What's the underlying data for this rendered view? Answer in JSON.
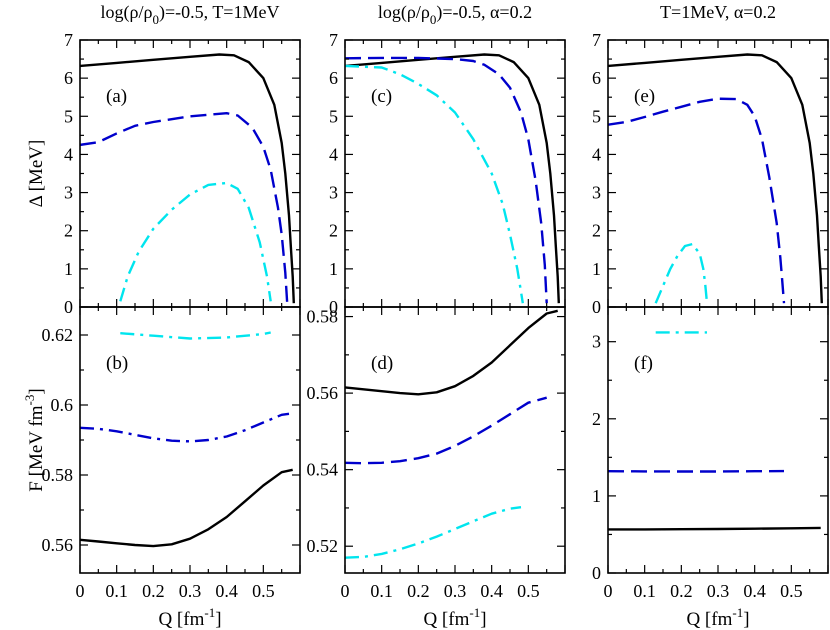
{
  "chart_data": [
    {
      "id": "a",
      "type": "line",
      "panel_label": "(a)",
      "title": "log(ρ/ρ0)=-0.5, T=1MeV",
      "xlabel": "",
      "ylabel": "Δ [MeV]",
      "xlim": [
        0,
        0.6
      ],
      "ylim": [
        0,
        7
      ],
      "xticks": [
        0,
        0.1,
        0.2,
        0.3,
        0.4,
        0.5
      ],
      "yticks": [
        0,
        1,
        2,
        3,
        4,
        5,
        6,
        7
      ],
      "series": [
        {
          "name": "black solid",
          "color": "#000000",
          "dash": "solid",
          "x": [
            0,
            0.1,
            0.2,
            0.3,
            0.38,
            0.42,
            0.46,
            0.5,
            0.53,
            0.55,
            0.56,
            0.57,
            0.575,
            0.58,
            0.583
          ],
          "y": [
            6.32,
            6.4,
            6.48,
            6.56,
            6.62,
            6.6,
            6.42,
            6.0,
            5.3,
            4.3,
            3.5,
            2.4,
            1.6,
            0.8,
            0.1
          ]
        },
        {
          "name": "blue dashed",
          "color": "#0000cc",
          "dash": "dashed",
          "x": [
            0,
            0.05,
            0.1,
            0.15,
            0.2,
            0.3,
            0.4,
            0.43,
            0.47,
            0.5,
            0.52,
            0.54,
            0.55,
            0.56,
            0.565
          ],
          "y": [
            4.25,
            4.32,
            4.55,
            4.75,
            4.85,
            5.0,
            5.08,
            5.02,
            4.7,
            4.2,
            3.6,
            2.6,
            1.9,
            0.9,
            0.1
          ]
        },
        {
          "name": "cyan dash-dot",
          "color": "#00e5ee",
          "dash": "dashdot",
          "x": [
            0.11,
            0.13,
            0.16,
            0.2,
            0.25,
            0.3,
            0.35,
            0.4,
            0.43,
            0.46,
            0.49,
            0.51,
            0.52
          ],
          "y": [
            0.15,
            0.8,
            1.45,
            2.05,
            2.55,
            2.95,
            3.2,
            3.25,
            3.1,
            2.6,
            1.7,
            0.8,
            0.15
          ]
        }
      ]
    },
    {
      "id": "b",
      "type": "line",
      "panel_label": "(b)",
      "title": "",
      "xlabel": "Q [fm⁻¹]",
      "ylabel": "F [MeV fm⁻³]",
      "xlim": [
        0,
        0.6
      ],
      "ylim": [
        0.552,
        0.628
      ],
      "xticks": [
        0,
        0.1,
        0.2,
        0.3,
        0.4,
        0.5
      ],
      "yticks": [
        0.56,
        0.58,
        0.6,
        0.62
      ],
      "series": [
        {
          "name": "black solid",
          "color": "#000000",
          "dash": "solid",
          "x": [
            0,
            0.05,
            0.1,
            0.15,
            0.2,
            0.25,
            0.3,
            0.35,
            0.4,
            0.45,
            0.5,
            0.55,
            0.58
          ],
          "y": [
            0.5615,
            0.561,
            0.5605,
            0.56,
            0.5597,
            0.5602,
            0.5618,
            0.5645,
            0.568,
            0.5725,
            0.577,
            0.5808,
            0.5815
          ]
        },
        {
          "name": "blue dash-dot",
          "color": "#0000cc",
          "dash": "dashdot",
          "x": [
            0,
            0.05,
            0.1,
            0.15,
            0.2,
            0.25,
            0.3,
            0.35,
            0.4,
            0.45,
            0.5,
            0.55,
            0.57
          ],
          "y": [
            0.5935,
            0.5932,
            0.5925,
            0.5915,
            0.5905,
            0.5898,
            0.5896,
            0.59,
            0.591,
            0.5928,
            0.595,
            0.5972,
            0.5975
          ]
        },
        {
          "name": "cyan dash-dot",
          "color": "#00e5ee",
          "dash": "dashdot",
          "x": [
            0.11,
            0.2,
            0.3,
            0.4,
            0.5,
            0.52
          ],
          "y": [
            0.6205,
            0.6198,
            0.619,
            0.6193,
            0.6203,
            0.6207
          ]
        }
      ]
    },
    {
      "id": "c",
      "type": "line",
      "panel_label": "(c)",
      "title": "log(ρ/ρ0)=-0.5, α=0.2",
      "xlabel": "",
      "ylabel": "",
      "xlim": [
        0,
        0.6
      ],
      "ylim": [
        0,
        7
      ],
      "xticks": [
        0,
        0.1,
        0.2,
        0.3,
        0.4,
        0.5
      ],
      "yticks": [
        0,
        1,
        2,
        3,
        4,
        5,
        6,
        7
      ],
      "series": [
        {
          "name": "black solid",
          "color": "#000000",
          "dash": "solid",
          "x": [
            0,
            0.1,
            0.2,
            0.3,
            0.38,
            0.42,
            0.46,
            0.5,
            0.53,
            0.55,
            0.56,
            0.57,
            0.575,
            0.58,
            0.583
          ],
          "y": [
            6.32,
            6.4,
            6.48,
            6.56,
            6.62,
            6.6,
            6.42,
            6.0,
            5.3,
            4.3,
            3.5,
            2.4,
            1.6,
            0.8,
            0.1
          ]
        },
        {
          "name": "blue dashed",
          "color": "#0000cc",
          "dash": "dashed",
          "x": [
            0,
            0.1,
            0.2,
            0.3,
            0.35,
            0.38,
            0.42,
            0.45,
            0.48,
            0.5,
            0.52,
            0.535,
            0.545,
            0.55
          ],
          "y": [
            6.52,
            6.53,
            6.53,
            6.5,
            6.45,
            6.35,
            6.1,
            5.75,
            5.1,
            4.4,
            3.3,
            2.2,
            1.1,
            0.1
          ]
        },
        {
          "name": "cyan dash-dot",
          "color": "#00e5ee",
          "dash": "dashdot",
          "x": [
            0,
            0.1,
            0.15,
            0.2,
            0.25,
            0.3,
            0.35,
            0.4,
            0.43,
            0.45,
            0.47,
            0.48,
            0.485
          ],
          "y": [
            6.32,
            6.28,
            6.1,
            5.85,
            5.55,
            5.1,
            4.4,
            3.5,
            2.7,
            1.9,
            1.0,
            0.4,
            0.1
          ]
        }
      ]
    },
    {
      "id": "d",
      "type": "line",
      "panel_label": "(d)",
      "title": "",
      "xlabel": "Q [fm⁻¹]",
      "ylabel": "",
      "xlim": [
        0,
        0.6
      ],
      "ylim": [
        0.513,
        0.5825
      ],
      "xticks": [
        0,
        0.1,
        0.2,
        0.3,
        0.4,
        0.5
      ],
      "yticks": [
        0.52,
        0.54,
        0.56,
        0.58
      ],
      "series": [
        {
          "name": "black solid",
          "color": "#000000",
          "dash": "solid",
          "x": [
            0,
            0.05,
            0.1,
            0.15,
            0.2,
            0.25,
            0.3,
            0.35,
            0.4,
            0.45,
            0.5,
            0.55,
            0.58
          ],
          "y": [
            0.5615,
            0.561,
            0.5605,
            0.56,
            0.5597,
            0.5602,
            0.5618,
            0.5645,
            0.568,
            0.5725,
            0.577,
            0.5808,
            0.5815
          ]
        },
        {
          "name": "blue dashed",
          "color": "#0000cc",
          "dash": "dashed",
          "x": [
            0,
            0.05,
            0.1,
            0.15,
            0.2,
            0.25,
            0.3,
            0.35,
            0.4,
            0.45,
            0.5,
            0.55
          ],
          "y": [
            0.5418,
            0.5417,
            0.5418,
            0.5422,
            0.543,
            0.5442,
            0.5462,
            0.5487,
            0.5515,
            0.5545,
            0.5575,
            0.5588
          ]
        },
        {
          "name": "cyan dash-dot",
          "color": "#00e5ee",
          "dash": "dashdot",
          "x": [
            0,
            0.05,
            0.1,
            0.15,
            0.2,
            0.25,
            0.3,
            0.35,
            0.4,
            0.45,
            0.48
          ],
          "y": [
            0.517,
            0.5172,
            0.518,
            0.5192,
            0.5207,
            0.5225,
            0.5245,
            0.5265,
            0.5285,
            0.5298,
            0.5302
          ]
        }
      ]
    },
    {
      "id": "e",
      "type": "line",
      "panel_label": "(e)",
      "title": "T=1MeV, α=0.2",
      "xlabel": "",
      "ylabel": "",
      "xlim": [
        0,
        0.6
      ],
      "ylim": [
        0,
        7
      ],
      "xticks": [
        0,
        0.1,
        0.2,
        0.3,
        0.4,
        0.5
      ],
      "yticks": [
        0,
        1,
        2,
        3,
        4,
        5,
        6,
        7
      ],
      "series": [
        {
          "name": "black solid",
          "color": "#000000",
          "dash": "solid",
          "x": [
            0,
            0.1,
            0.2,
            0.3,
            0.38,
            0.42,
            0.46,
            0.5,
            0.53,
            0.55,
            0.56,
            0.57,
            0.575,
            0.58,
            0.583
          ],
          "y": [
            6.32,
            6.4,
            6.48,
            6.56,
            6.62,
            6.6,
            6.42,
            6.0,
            5.3,
            4.3,
            3.5,
            2.4,
            1.6,
            0.8,
            0.1
          ]
        },
        {
          "name": "blue dashed",
          "color": "#0000cc",
          "dash": "dashed",
          "x": [
            0,
            0.05,
            0.1,
            0.15,
            0.2,
            0.25,
            0.3,
            0.35,
            0.38,
            0.4,
            0.42,
            0.44,
            0.46,
            0.47,
            0.475,
            0.48
          ],
          "y": [
            4.78,
            4.85,
            4.98,
            5.12,
            5.25,
            5.38,
            5.46,
            5.45,
            5.3,
            5.0,
            4.4,
            3.4,
            2.2,
            1.3,
            0.7,
            0.1
          ]
        },
        {
          "name": "cyan dash-dot",
          "color": "#00e5ee",
          "dash": "dashdot",
          "x": [
            0.13,
            0.15,
            0.17,
            0.19,
            0.21,
            0.23,
            0.25,
            0.26,
            0.265,
            0.27
          ],
          "y": [
            0.1,
            0.55,
            1.0,
            1.35,
            1.6,
            1.65,
            1.4,
            1.0,
            0.6,
            0.1
          ]
        }
      ]
    },
    {
      "id": "f",
      "type": "line",
      "panel_label": "(f)",
      "title": "",
      "xlabel": "Q [fm⁻¹]",
      "ylabel": "",
      "xlim": [
        0,
        0.6
      ],
      "ylim": [
        0,
        3.45
      ],
      "xticks": [
        0,
        0.1,
        0.2,
        0.3,
        0.4,
        0.5
      ],
      "yticks": [
        0,
        1,
        2,
        3
      ],
      "series": [
        {
          "name": "black solid",
          "color": "#000000",
          "dash": "solid",
          "x": [
            0,
            0.1,
            0.2,
            0.3,
            0.4,
            0.5,
            0.58
          ],
          "y": [
            0.565,
            0.566,
            0.568,
            0.571,
            0.575,
            0.58,
            0.585
          ]
        },
        {
          "name": "blue dashed",
          "color": "#0000cc",
          "dash": "dashed",
          "x": [
            0,
            0.1,
            0.2,
            0.3,
            0.4,
            0.48
          ],
          "y": [
            1.32,
            1.318,
            1.316,
            1.317,
            1.32,
            1.322
          ]
        },
        {
          "name": "cyan dash-dot",
          "color": "#00e5ee",
          "dash": "dashdot",
          "x": [
            0.13,
            0.2,
            0.27
          ],
          "y": [
            3.12,
            3.12,
            3.12
          ]
        }
      ]
    }
  ]
}
